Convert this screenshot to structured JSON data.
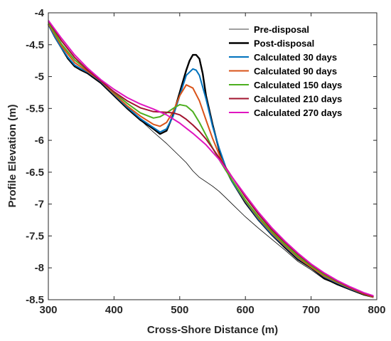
{
  "chart_data": {
    "type": "line",
    "title": "",
    "xlabel": "Cross-Shore Distance (m)",
    "ylabel": "Profile Elevation (m)",
    "xlim": [
      300,
      800
    ],
    "ylim": [
      -8.5,
      -4
    ],
    "xticks": [
      300,
      400,
      500,
      600,
      700,
      800
    ],
    "yticks": [
      -4,
      -4.5,
      -5,
      -5.5,
      -6,
      -6.5,
      -7,
      -7.5,
      -8,
      -8.5
    ],
    "xtick_labels": [
      "300",
      "400",
      "500",
      "600",
      "700",
      "800"
    ],
    "ytick_labels": [
      "-4",
      "-4.5",
      "-5",
      "-5.5",
      "-6",
      "-6.5",
      "-7",
      "-7.5",
      "-8",
      "-8.5"
    ],
    "grid": false,
    "legend_position": "top-right",
    "series": [
      {
        "name": "Pre-disposal",
        "color": "#000000",
        "x": [
          300,
          310,
          320,
          330,
          340,
          350,
          360,
          380,
          400,
          420,
          440,
          460,
          480,
          500,
          510,
          520,
          530,
          540,
          550,
          560,
          570,
          580,
          600,
          620,
          640,
          660,
          680,
          700,
          720,
          740,
          760,
          780,
          795
        ],
        "y": [
          -4.18,
          -4.38,
          -4.55,
          -4.72,
          -4.84,
          -4.9,
          -4.95,
          -5.1,
          -5.3,
          -5.5,
          -5.68,
          -5.87,
          -6.05,
          -6.25,
          -6.35,
          -6.48,
          -6.58,
          -6.65,
          -6.72,
          -6.8,
          -6.9,
          -7.0,
          -7.2,
          -7.38,
          -7.55,
          -7.72,
          -7.9,
          -8.03,
          -8.18,
          -8.26,
          -8.34,
          -8.42,
          -8.46
        ]
      },
      {
        "name": "Post-disposal",
        "color": "#000000",
        "x": [
          300,
          310,
          320,
          330,
          340,
          350,
          360,
          380,
          400,
          420,
          440,
          460,
          470,
          480,
          490,
          500,
          510,
          515,
          520,
          525,
          530,
          535,
          540,
          550,
          560,
          570,
          580,
          600,
          620,
          640,
          660,
          680,
          700,
          720,
          740,
          760,
          780,
          795
        ],
        "y": [
          -4.18,
          -4.38,
          -4.55,
          -4.72,
          -4.84,
          -4.9,
          -4.95,
          -5.1,
          -5.3,
          -5.5,
          -5.68,
          -5.82,
          -5.9,
          -5.85,
          -5.6,
          -5.25,
          -4.9,
          -4.75,
          -4.66,
          -4.66,
          -4.72,
          -4.95,
          -5.3,
          -5.75,
          -6.15,
          -6.45,
          -6.65,
          -6.98,
          -7.25,
          -7.48,
          -7.68,
          -7.87,
          -8.0,
          -8.16,
          -8.26,
          -8.34,
          -8.42,
          -8.46
        ]
      },
      {
        "name": "Calculated 30 days",
        "color": "#0072BD",
        "x": [
          300,
          310,
          320,
          330,
          340,
          350,
          360,
          380,
          400,
          420,
          440,
          460,
          470,
          480,
          490,
          500,
          510,
          520,
          525,
          530,
          540,
          550,
          560,
          570,
          580,
          600,
          620,
          640,
          660,
          680,
          700,
          720,
          740,
          760,
          780,
          795
        ],
        "y": [
          -4.18,
          -4.38,
          -4.55,
          -4.7,
          -4.82,
          -4.88,
          -4.93,
          -5.08,
          -5.28,
          -5.48,
          -5.66,
          -5.8,
          -5.87,
          -5.82,
          -5.62,
          -5.3,
          -4.98,
          -4.88,
          -4.9,
          -4.98,
          -5.35,
          -5.78,
          -6.12,
          -6.42,
          -6.65,
          -6.96,
          -7.24,
          -7.47,
          -7.66,
          -7.85,
          -7.99,
          -8.14,
          -8.24,
          -8.33,
          -8.41,
          -8.46
        ]
      },
      {
        "name": "Calculated 90 days",
        "color": "#D95319",
        "x": [
          300,
          320,
          340,
          360,
          380,
          400,
          420,
          440,
          460,
          470,
          480,
          490,
          500,
          510,
          520,
          530,
          540,
          550,
          560,
          570,
          580,
          600,
          620,
          640,
          660,
          680,
          700,
          720,
          740,
          760,
          780,
          795
        ],
        "y": [
          -4.17,
          -4.52,
          -4.78,
          -4.92,
          -5.07,
          -5.27,
          -5.46,
          -5.62,
          -5.75,
          -5.78,
          -5.72,
          -5.55,
          -5.3,
          -5.13,
          -5.18,
          -5.38,
          -5.68,
          -5.97,
          -6.22,
          -6.45,
          -6.63,
          -6.95,
          -7.22,
          -7.45,
          -7.65,
          -7.84,
          -7.99,
          -8.13,
          -8.23,
          -8.32,
          -8.41,
          -8.46
        ]
      },
      {
        "name": "Calculated 150 days",
        "color": "#4DAF1F",
        "x": [
          300,
          320,
          340,
          360,
          380,
          400,
          420,
          440,
          460,
          470,
          480,
          490,
          500,
          510,
          520,
          530,
          540,
          550,
          560,
          570,
          580,
          600,
          620,
          640,
          660,
          680,
          700,
          720,
          740,
          760,
          780,
          795
        ],
        "y": [
          -4.15,
          -4.49,
          -4.74,
          -4.9,
          -5.06,
          -5.25,
          -5.42,
          -5.57,
          -5.65,
          -5.63,
          -5.57,
          -5.5,
          -5.44,
          -5.46,
          -5.55,
          -5.72,
          -5.92,
          -6.12,
          -6.3,
          -6.47,
          -6.63,
          -6.94,
          -7.2,
          -7.43,
          -7.63,
          -7.82,
          -7.97,
          -8.11,
          -8.22,
          -8.31,
          -8.4,
          -8.45
        ]
      },
      {
        "name": "Calculated 210 days",
        "color": "#A2142F",
        "x": [
          300,
          320,
          340,
          360,
          380,
          400,
          420,
          440,
          460,
          480,
          490,
          500,
          510,
          520,
          530,
          540,
          560,
          580,
          600,
          620,
          640,
          660,
          680,
          700,
          720,
          740,
          760,
          780,
          795
        ],
        "y": [
          -4.13,
          -4.44,
          -4.7,
          -4.9,
          -5.07,
          -5.24,
          -5.38,
          -5.49,
          -5.55,
          -5.56,
          -5.57,
          -5.6,
          -5.67,
          -5.76,
          -5.86,
          -5.98,
          -6.27,
          -6.58,
          -6.89,
          -7.16,
          -7.4,
          -7.6,
          -7.79,
          -7.95,
          -8.09,
          -8.21,
          -8.31,
          -8.4,
          -8.45
        ]
      },
      {
        "name": "Calculated 270 days",
        "color": "#E015C0",
        "x": [
          300,
          320,
          340,
          360,
          380,
          400,
          420,
          440,
          460,
          480,
          500,
          520,
          540,
          560,
          580,
          600,
          620,
          640,
          660,
          680,
          700,
          720,
          740,
          760,
          780,
          795
        ],
        "y": [
          -4.12,
          -4.4,
          -4.66,
          -4.87,
          -5.05,
          -5.2,
          -5.33,
          -5.43,
          -5.51,
          -5.6,
          -5.73,
          -5.89,
          -6.07,
          -6.3,
          -6.58,
          -6.86,
          -7.13,
          -7.37,
          -7.58,
          -7.77,
          -7.94,
          -8.08,
          -8.2,
          -8.3,
          -8.39,
          -8.44
        ]
      }
    ]
  }
}
